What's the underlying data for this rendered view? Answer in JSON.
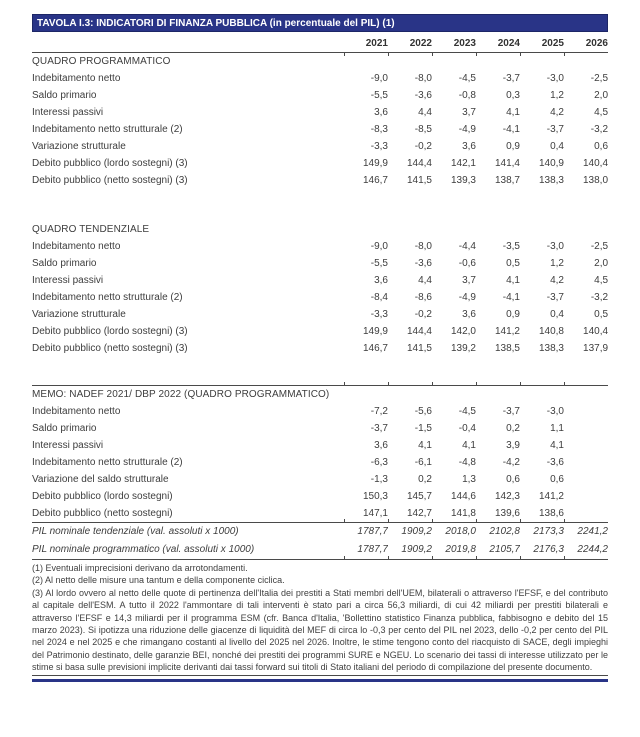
{
  "table": {
    "title": "TAVOLA I.3: INDICATORI DI FINANZA PUBBLICA (in percentuale del PIL) (1)",
    "years": [
      "2021",
      "2022",
      "2023",
      "2024",
      "2025",
      "2026"
    ],
    "sections": [
      {
        "heading": "QUADRO PROGRAMMATICO",
        "rows": [
          {
            "label": "Indebitamento netto",
            "values": [
              "-9,0",
              "-8,0",
              "-4,5",
              "-3,7",
              "-3,0",
              "-2,5"
            ]
          },
          {
            "label": "Saldo primario",
            "values": [
              "-5,5",
              "-3,6",
              "-0,8",
              "0,3",
              "1,2",
              "2,0"
            ]
          },
          {
            "label": "Interessi passivi",
            "values": [
              "3,6",
              "4,4",
              "3,7",
              "4,1",
              "4,2",
              "4,5"
            ]
          },
          {
            "label": "Indebitamento netto strutturale (2)",
            "values": [
              "-8,3",
              "-8,5",
              "-4,9",
              "-4,1",
              "-3,7",
              "-3,2"
            ]
          },
          {
            "label": "Variazione strutturale",
            "values": [
              "-3,3",
              "-0,2",
              "3,6",
              "0,9",
              "0,4",
              "0,6"
            ]
          },
          {
            "label": "Debito pubblico (lordo sostegni) (3)",
            "values": [
              "149,9",
              "144,4",
              "142,1",
              "141,4",
              "140,9",
              "140,4"
            ]
          },
          {
            "label": "Debito pubblico (netto sostegni) (3)",
            "values": [
              "146,7",
              "141,5",
              "139,3",
              "138,7",
              "138,3",
              "138,0"
            ]
          }
        ]
      },
      {
        "heading": "QUADRO TENDENZIALE",
        "rows": [
          {
            "label": "Indebitamento netto",
            "values": [
              "-9,0",
              "-8,0",
              "-4,4",
              "-3,5",
              "-3,0",
              "-2,5"
            ]
          },
          {
            "label": "Saldo primario",
            "values": [
              "-5,5",
              "-3,6",
              "-0,6",
              "0,5",
              "1,2",
              "2,0"
            ]
          },
          {
            "label": "Interessi passivi",
            "values": [
              "3,6",
              "4,4",
              "3,7",
              "4,1",
              "4,2",
              "4,5"
            ]
          },
          {
            "label": "Indebitamento netto strutturale (2)",
            "values": [
              "-8,4",
              "-8,6",
              "-4,9",
              "-4,1",
              "-3,7",
              "-3,2"
            ]
          },
          {
            "label": "Variazione strutturale",
            "values": [
              "-3,3",
              "-0,2",
              "3,6",
              "0,9",
              "0,4",
              "0,5"
            ]
          },
          {
            "label": "Debito pubblico (lordo sostegni) (3)",
            "values": [
              "149,9",
              "144,4",
              "142,0",
              "141,2",
              "140,8",
              "140,4"
            ]
          },
          {
            "label": "Debito pubblico (netto sostegni) (3)",
            "values": [
              "146,7",
              "141,5",
              "139,2",
              "138,5",
              "138,3",
              "137,9"
            ]
          }
        ]
      },
      {
        "heading": "MEMO: NADEF 2021/ DBP 2022 (QUADRO PROGRAMMATICO)",
        "top_rule": true,
        "rows": [
          {
            "label": "Indebitamento netto",
            "values": [
              "-7,2",
              "-5,6",
              "-4,5",
              "-3,7",
              "-3,0"
            ]
          },
          {
            "label": "Saldo primario",
            "values": [
              "-3,7",
              "-1,5",
              "-0,4",
              "0,2",
              "1,1"
            ]
          },
          {
            "label": "Interessi passivi",
            "values": [
              "3,6",
              "4,1",
              "4,1",
              "3,9",
              "4,1"
            ]
          },
          {
            "label": "Indebitamento netto strutturale (2)",
            "values": [
              "-6,3",
              "-6,1",
              "-4,8",
              "-4,2",
              "-3,6"
            ]
          },
          {
            "label": "Variazione del saldo strutturale",
            "values": [
              "-1,3",
              "0,2",
              "1,3",
              "0,6",
              "0,6"
            ]
          },
          {
            "label": "Debito pubblico (lordo sostegni)",
            "values": [
              "150,3",
              "145,7",
              "144,6",
              "142,3",
              "141,2"
            ]
          },
          {
            "label": "Debito pubblico (netto sostegni)",
            "values": [
              "147,1",
              "142,7",
              "141,8",
              "139,6",
              "138,6"
            ]
          }
        ]
      }
    ],
    "pil_rows": [
      {
        "label": "PIL nominale tendenziale (val. assoluti x 1000)",
        "values": [
          "1787,7",
          "1909,2",
          "2018,0",
          "2102,8",
          "2173,3",
          "2241,2"
        ]
      },
      {
        "label": "PIL nominale programmatico (val. assoluti x 1000)",
        "values": [
          "1787,7",
          "1909,2",
          "2019,8",
          "2105,7",
          "2176,3",
          "2244,2"
        ]
      }
    ],
    "footnotes": [
      "(1) Eventuali imprecisioni derivano da arrotondamenti.",
      "(2) Al netto delle misure una tantum e della componente ciclica.",
      "(3) Al lordo ovvero al netto delle quote di pertinenza dell'Italia dei prestiti a Stati membri dell'UEM, bilaterali o attraverso l'EFSF, e del contributo al capitale dell'ESM. A tutto il 2022 l'ammontare di tali interventi è stato pari a circa 56,3 miliardi, di cui 42 miliardi per prestiti bilaterali e attraverso l'EFSF e 14,3 miliardi per il programma ESM (cfr. Banca d'Italia, 'Bollettino statistico Finanza pubblica, fabbisogno e debito del 15 marzo 2023). Si ipotizza una riduzione delle giacenze di liquidità del MEF di circa lo -0,3 per cento del PIL nel 2023, dello -0,2 per cento del PIL nel 2024 e nel 2025 e che rimangano costanti al livello del 2025 nel 2026. Inoltre, le stime tengono conto del riacquisto di SACE, degli impieghi del Patrimonio destinato, delle garanzie BEI, nonché dei prestiti dei programmi SURE e NGEU. Lo scenario dei tassi di interesse utilizzato per le stime si basa sulle previsioni implicite derivanti dai tassi forward sui titoli di Stato italiani del periodo di compilazione del presente documento."
    ],
    "colors": {
      "banner_navy": "#293487",
      "rule_gray": "#4a4a4a",
      "text_gray": "#3d3d3d"
    }
  }
}
